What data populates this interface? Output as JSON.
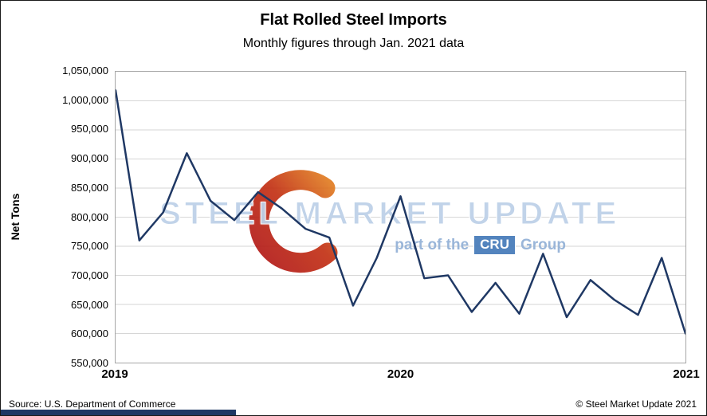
{
  "header": {
    "title": "Flat Rolled Steel Imports",
    "subtitle": "Monthly figures through Jan. 2021 data"
  },
  "footer": {
    "source": "Source: U.S. Department of Commerce",
    "copyright": "© Steel Market Update 2021"
  },
  "watermark": {
    "line1": "STEEL MARKET UPDATE",
    "line2_prefix": "part of the",
    "line2_cru": "CRU",
    "line2_suffix": "Group",
    "logo_icon": "red-orange-ring-logo"
  },
  "colors": {
    "line": "#1f3864",
    "grid": "#d6d6d6",
    "plot_border": "#a6a6a6",
    "bottom_bar": "#1f3864",
    "watermark_text": "#bed1e8",
    "watermark_sub": "#95b3d7",
    "cru_box": "#4a7ebb"
  },
  "chart_data": {
    "type": "line",
    "title": "Flat Rolled Steel Imports",
    "subtitle": "Monthly figures through Jan. 2021 data",
    "xlabel": "",
    "ylabel": "Net Tons",
    "ylim": [
      550000,
      1050000
    ],
    "ytick_step": 50000,
    "ytick_labels_bottom_to_top": [
      "550,000",
      "600,000",
      "650,000",
      "700,000",
      "750,000",
      "800,000",
      "850,000",
      "900,000",
      "950,000",
      "1,000,000",
      "1,050,000"
    ],
    "x": [
      "Jan 2019",
      "Feb 2019",
      "Mar 2019",
      "Apr 2019",
      "May 2019",
      "Jun 2019",
      "Jul 2019",
      "Aug 2019",
      "Sep 2019",
      "Oct 2019",
      "Nov 2019",
      "Dec 2019",
      "Jan 2020",
      "Feb 2020",
      "Mar 2020",
      "Apr 2020",
      "May 2020",
      "Jun 2020",
      "Jul 2020",
      "Aug 2020",
      "Sep 2020",
      "Oct 2020",
      "Nov 2020",
      "Dec 2020",
      "Jan 2021"
    ],
    "values": [
      1018000,
      760000,
      808000,
      910000,
      828000,
      795000,
      843000,
      815000,
      780000,
      765000,
      648000,
      730000,
      836000,
      695000,
      700000,
      637000,
      687000,
      634000,
      737000,
      628000,
      692000,
      658000,
      632000,
      730000,
      600000
    ],
    "x_tick_labels": [
      "2019",
      "2020",
      "2021"
    ],
    "x_tick_positions": [
      0,
      12,
      24
    ],
    "grid": "horizontal-only",
    "legend": "none"
  }
}
